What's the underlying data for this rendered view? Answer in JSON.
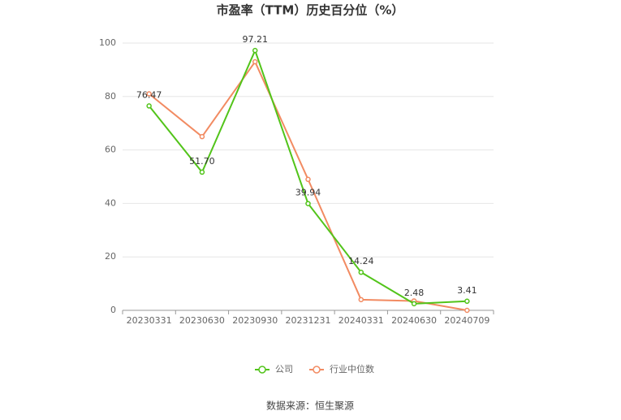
{
  "chart_data": {
    "type": "line",
    "title": "市盈率（TTM）历史百分位（%）",
    "categories": [
      "20230331",
      "20230630",
      "20230930",
      "20231231",
      "20240331",
      "20240630",
      "20240709"
    ],
    "series": [
      {
        "name": "公司",
        "color": "#52c41a",
        "values": [
          76.47,
          51.7,
          97.21,
          39.94,
          14.24,
          2.48,
          3.41
        ],
        "value_labels": [
          "76.47",
          "51.70",
          "97.21",
          "39.94",
          "14.24",
          "2.48",
          "3.41"
        ]
      },
      {
        "name": "行业中位数",
        "color": "#f28b62",
        "values": [
          81,
          65,
          93,
          49,
          4,
          3.5,
          0
        ]
      }
    ],
    "ylim": [
      0,
      100
    ],
    "yticks": [
      0,
      20,
      40,
      60,
      80,
      100
    ],
    "grid": true,
    "source": "数据来源：恒生聚源"
  }
}
